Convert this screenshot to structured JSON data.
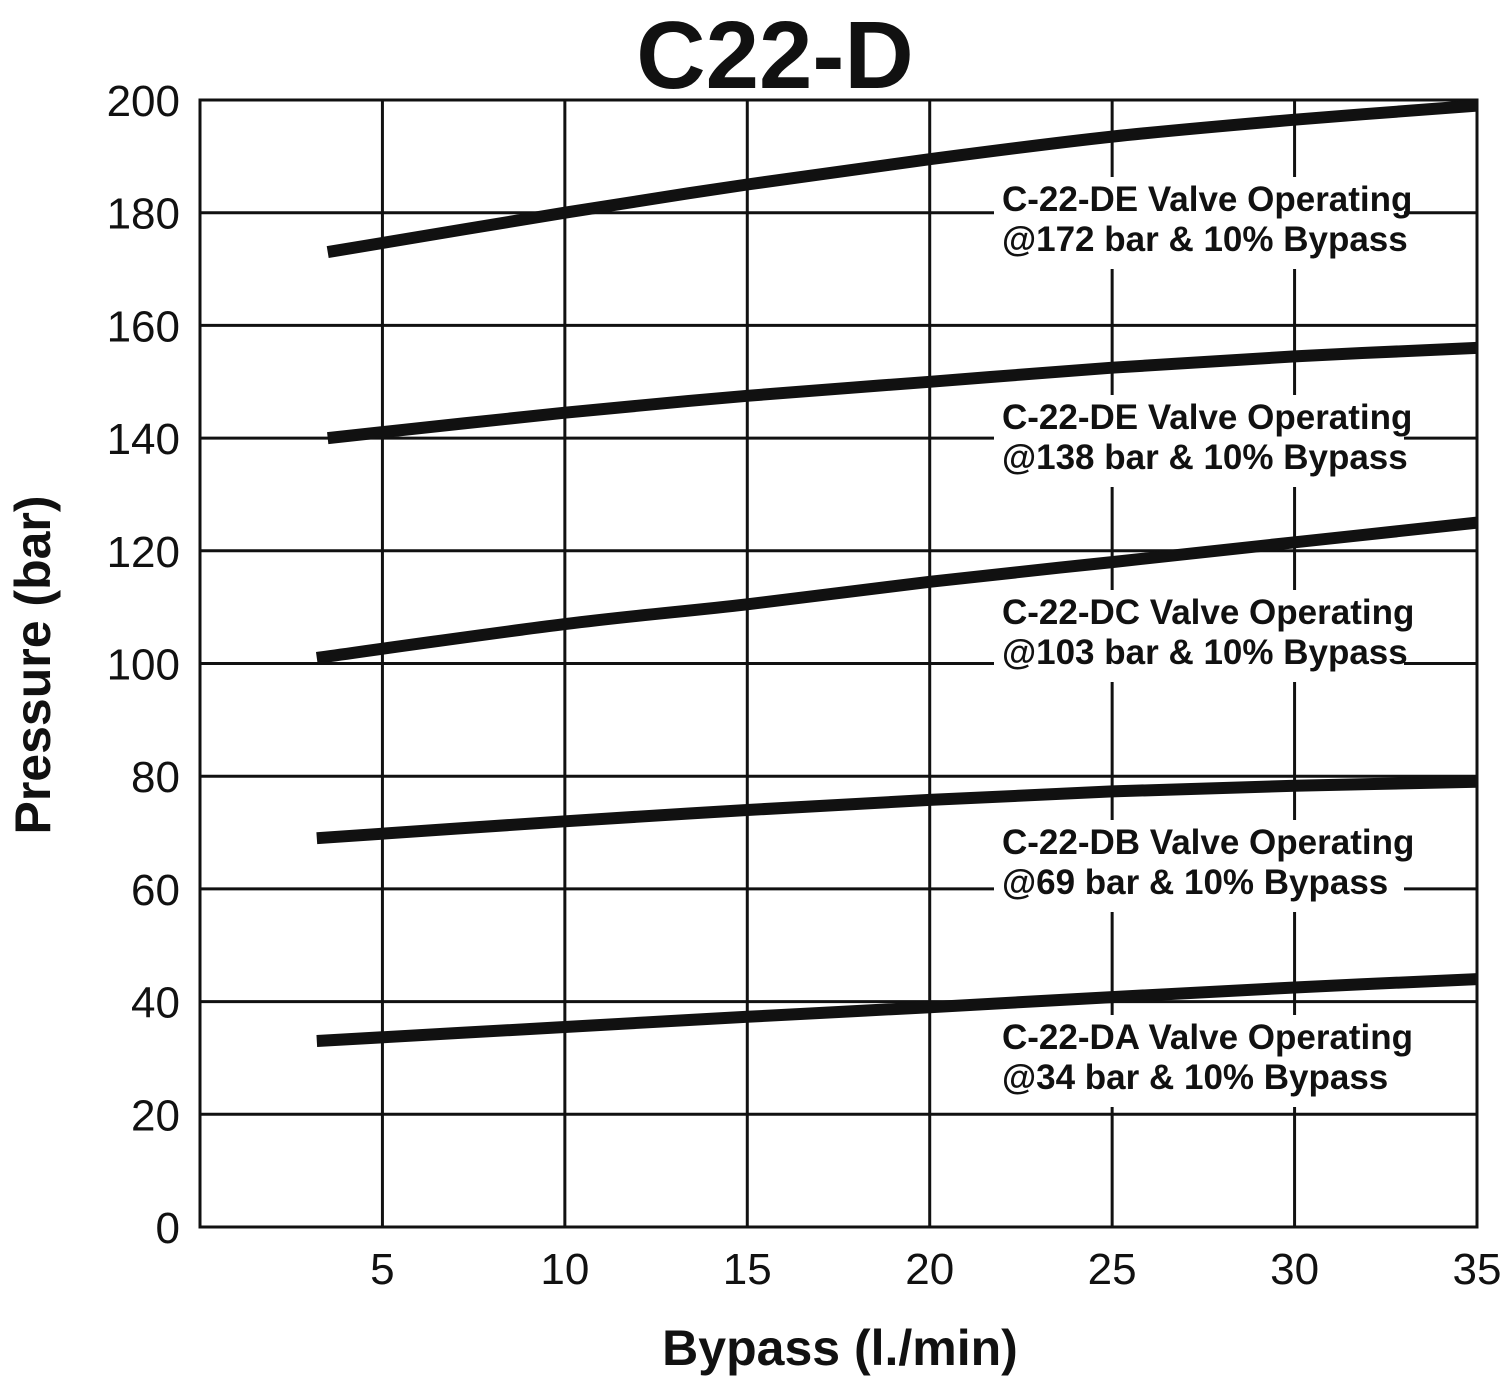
{
  "chart_data": {
    "type": "line",
    "title": "C22-D",
    "xlabel": "Bypass (l./min)",
    "ylabel": "Pressure (bar)",
    "xlim": [
      0,
      35
    ],
    "ylim": [
      0,
      200
    ],
    "xticks": [
      5,
      10,
      15,
      20,
      25,
      30,
      35
    ],
    "yticks": [
      0,
      20,
      40,
      60,
      80,
      100,
      120,
      140,
      160,
      180,
      200
    ],
    "grid": true,
    "series": [
      {
        "name": "C-22-DE Valve Operating @172 bar & 10% Bypass",
        "label_line1": "C-22-DE Valve Operating",
        "label_line2": "@172 bar & 10% Bypass",
        "x": [
          3.5,
          10,
          15,
          20,
          25,
          30,
          35
        ],
        "values": [
          173,
          180,
          185,
          189.5,
          193.5,
          196.5,
          199
        ]
      },
      {
        "name": "C-22-DE Valve Operating @138 bar & 10% Bypass",
        "label_line1": "C-22-DE Valve Operating",
        "label_line2": "@138 bar & 10% Bypass",
        "x": [
          3.5,
          10,
          15,
          20,
          25,
          30,
          35
        ],
        "values": [
          140,
          144.5,
          147.5,
          150,
          152.5,
          154.5,
          156
        ]
      },
      {
        "name": "C-22-DC Valve Operating @103 bar & 10% Bypass",
        "label_line1": "C-22-DC Valve Operating",
        "label_line2": "@103 bar & 10% Bypass",
        "x": [
          3.2,
          10,
          15,
          20,
          25,
          30,
          35
        ],
        "values": [
          101,
          107,
          110.5,
          114.5,
          118,
          121.5,
          125
        ]
      },
      {
        "name": "C-22-DB Valve Operating @69 bar & 10% Bypass",
        "label_line1": "C-22-DB Valve Operating",
        "label_line2": "@69 bar & 10% Bypass",
        "x": [
          3.2,
          10,
          15,
          20,
          25,
          30,
          35
        ],
        "values": [
          69,
          72,
          74,
          75.8,
          77.3,
          78.3,
          79
        ]
      },
      {
        "name": "C-22-DA Valve Operating @34 bar & 10% Bypass",
        "label_line1": "C-22-DA Valve Operating",
        "label_line2": "@34 bar & 10% Bypass",
        "x": [
          3.2,
          10,
          15,
          20,
          25,
          30,
          35
        ],
        "values": [
          33,
          35.5,
          37.3,
          39,
          40.8,
          42.5,
          44
        ]
      }
    ]
  }
}
